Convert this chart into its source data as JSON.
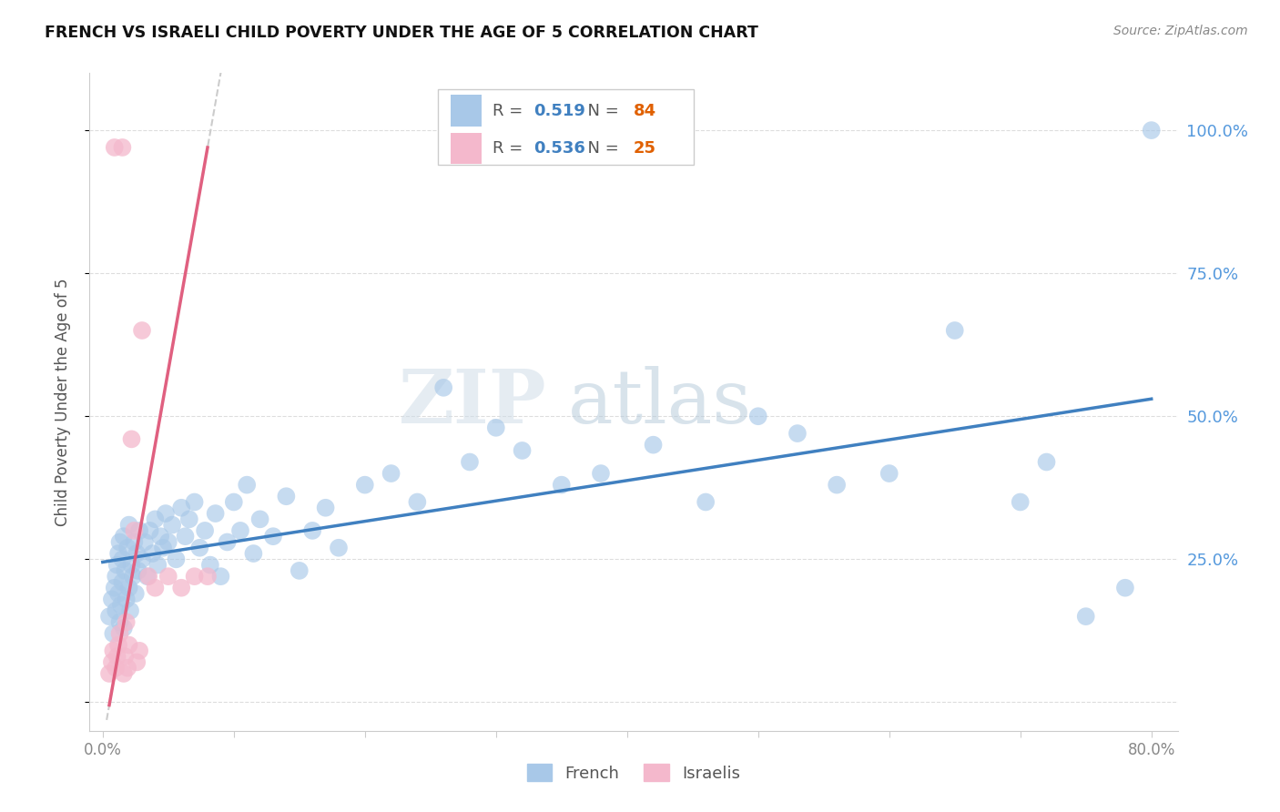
{
  "title": "FRENCH VS ISRAELI CHILD POVERTY UNDER THE AGE OF 5 CORRELATION CHART",
  "source": "Source: ZipAtlas.com",
  "ylabel": "Child Poverty Under the Age of 5",
  "french_R": 0.519,
  "french_N": 84,
  "israeli_R": 0.536,
  "israeli_N": 25,
  "french_color": "#a8c8e8",
  "israeli_color": "#f4b8cc",
  "french_line_color": "#4080c0",
  "israeli_line_color": "#e06080",
  "french_x": [
    0.005,
    0.007,
    0.008,
    0.009,
    0.01,
    0.01,
    0.011,
    0.012,
    0.012,
    0.013,
    0.013,
    0.014,
    0.015,
    0.015,
    0.016,
    0.016,
    0.017,
    0.018,
    0.019,
    0.02,
    0.02,
    0.021,
    0.022,
    0.023,
    0.024,
    0.025,
    0.026,
    0.027,
    0.028,
    0.03,
    0.032,
    0.034,
    0.036,
    0.038,
    0.04,
    0.042,
    0.044,
    0.046,
    0.048,
    0.05,
    0.053,
    0.056,
    0.06,
    0.063,
    0.066,
    0.07,
    0.074,
    0.078,
    0.082,
    0.086,
    0.09,
    0.095,
    0.1,
    0.105,
    0.11,
    0.115,
    0.12,
    0.13,
    0.14,
    0.15,
    0.16,
    0.17,
    0.18,
    0.2,
    0.22,
    0.24,
    0.26,
    0.28,
    0.3,
    0.32,
    0.35,
    0.38,
    0.42,
    0.46,
    0.5,
    0.53,
    0.56,
    0.6,
    0.65,
    0.7,
    0.72,
    0.75,
    0.78,
    0.8
  ],
  "french_y": [
    0.15,
    0.18,
    0.12,
    0.2,
    0.22,
    0.16,
    0.24,
    0.19,
    0.26,
    0.14,
    0.28,
    0.17,
    0.21,
    0.25,
    0.13,
    0.29,
    0.23,
    0.18,
    0.27,
    0.2,
    0.31,
    0.16,
    0.24,
    0.22,
    0.28,
    0.19,
    0.26,
    0.23,
    0.3,
    0.25,
    0.28,
    0.22,
    0.3,
    0.26,
    0.32,
    0.24,
    0.29,
    0.27,
    0.33,
    0.28,
    0.31,
    0.25,
    0.34,
    0.29,
    0.32,
    0.35,
    0.27,
    0.3,
    0.24,
    0.33,
    0.22,
    0.28,
    0.35,
    0.3,
    0.38,
    0.26,
    0.32,
    0.29,
    0.36,
    0.23,
    0.3,
    0.34,
    0.27,
    0.38,
    0.4,
    0.35,
    0.55,
    0.42,
    0.48,
    0.44,
    0.38,
    0.4,
    0.45,
    0.35,
    0.5,
    0.47,
    0.38,
    0.4,
    0.65,
    0.35,
    0.42,
    0.15,
    0.2,
    1.0
  ],
  "israeli_x": [
    0.005,
    0.007,
    0.008,
    0.009,
    0.01,
    0.011,
    0.012,
    0.013,
    0.015,
    0.016,
    0.017,
    0.018,
    0.019,
    0.02,
    0.022,
    0.024,
    0.026,
    0.028,
    0.03,
    0.035,
    0.04,
    0.05,
    0.06,
    0.07,
    0.08
  ],
  "israeli_y": [
    0.05,
    0.07,
    0.09,
    0.97,
    0.06,
    0.08,
    0.1,
    0.12,
    0.97,
    0.05,
    0.08,
    0.14,
    0.06,
    0.1,
    0.46,
    0.3,
    0.07,
    0.09,
    0.65,
    0.22,
    0.2,
    0.22,
    0.2,
    0.22,
    0.22
  ],
  "watermark_zip": "ZIP",
  "watermark_atlas": "atlas",
  "watermark_color": "#d0dff0",
  "background_color": "#ffffff",
  "grid_color": "#dddddd",
  "xlim": [
    0.0,
    0.8
  ],
  "ylim": [
    -0.05,
    1.1
  ],
  "yticks": [
    0.0,
    0.25,
    0.5,
    0.75,
    1.0
  ],
  "ytick_labels_right": [
    "",
    "25.0%",
    "50.0%",
    "75.0%",
    "100.0%"
  ],
  "xtick_labels": [
    "0.0%",
    "80.0%"
  ]
}
